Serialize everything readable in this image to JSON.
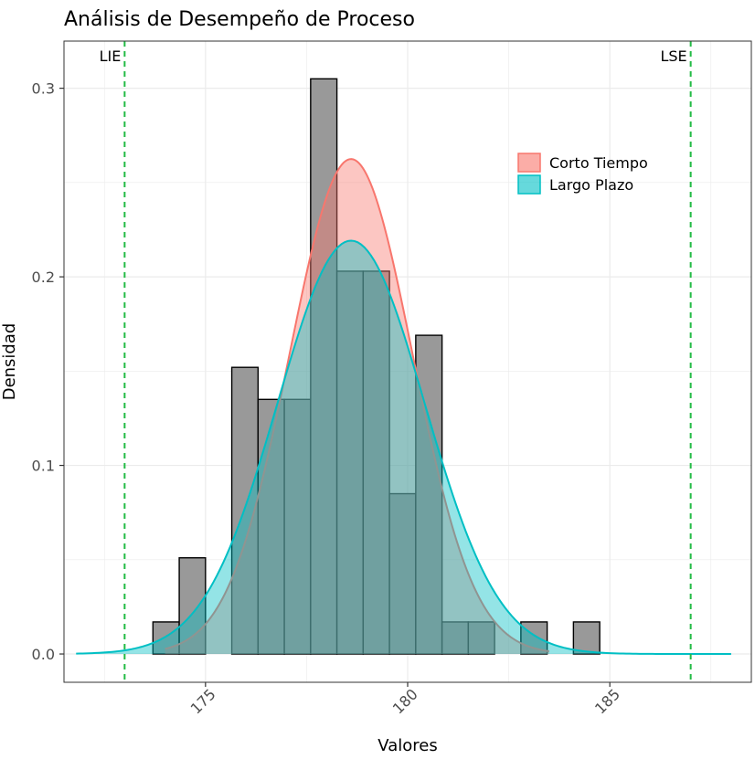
{
  "chart_data": {
    "type": "bar",
    "title": "Análisis de Desempeño de Proceso",
    "xlabel": "Valores",
    "ylabel": "Densidad",
    "xlim": [
      171.5,
      188.5
    ],
    "ylim": [
      -0.015,
      0.325
    ],
    "x_ticks": [
      175,
      180,
      185
    ],
    "y_ticks": [
      0.0,
      0.1,
      0.2,
      0.3
    ],
    "x_tick_labels": [
      "175",
      "180",
      "185"
    ],
    "y_tick_labels": [
      "0.0",
      "0.1",
      "0.2",
      "0.3"
    ],
    "grid": true,
    "legend_position": "top-right",
    "histogram": {
      "bin_width": 0.65,
      "bins": [
        {
          "x0": 173.7,
          "x1": 174.35,
          "density": 0.017
        },
        {
          "x0": 174.35,
          "x1": 175.0,
          "density": 0.051
        },
        {
          "x0": 175.0,
          "x1": 175.65,
          "density": 0.0
        },
        {
          "x0": 175.65,
          "x1": 176.3,
          "density": 0.152
        },
        {
          "x0": 176.3,
          "x1": 176.95,
          "density": 0.135
        },
        {
          "x0": 176.95,
          "x1": 177.6,
          "density": 0.135
        },
        {
          "x0": 177.6,
          "x1": 178.25,
          "density": 0.305
        },
        {
          "x0": 178.25,
          "x1": 178.9,
          "density": 0.203
        },
        {
          "x0": 178.9,
          "x1": 179.55,
          "density": 0.203
        },
        {
          "x0": 179.55,
          "x1": 180.2,
          "density": 0.085
        },
        {
          "x0": 180.2,
          "x1": 180.85,
          "density": 0.169
        },
        {
          "x0": 180.85,
          "x1": 181.5,
          "density": 0.017
        },
        {
          "x0": 181.5,
          "x1": 182.15,
          "density": 0.017
        },
        {
          "x0": 182.15,
          "x1": 182.8,
          "density": 0.0
        },
        {
          "x0": 182.8,
          "x1": 183.45,
          "density": 0.017
        },
        {
          "x0": 183.45,
          "x1": 184.1,
          "density": 0.0
        },
        {
          "x0": 184.1,
          "x1": 184.75,
          "density": 0.017
        }
      ]
    },
    "series": [
      {
        "name": "Corto Tiempo",
        "type": "density-area",
        "mean": 178.6,
        "sd": 1.52,
        "x_range": [
          174.0,
          183.5
        ],
        "color": "#f8766d"
      },
      {
        "name": "Largo Plazo",
        "type": "density-area",
        "mean": 178.6,
        "sd": 1.82,
        "x_range": [
          171.8,
          188.0
        ],
        "color": "#00bfc4"
      }
    ],
    "spec_limits": [
      {
        "label": "LIE",
        "value": 173.0
      },
      {
        "label": "LSE",
        "value": 187.0
      }
    ],
    "colors": {
      "bar_fill": "#999999",
      "bar_stroke": "#000000",
      "spec_line": "#22bb44",
      "grid": "#ebebeb",
      "panel_border": "#333333"
    }
  }
}
